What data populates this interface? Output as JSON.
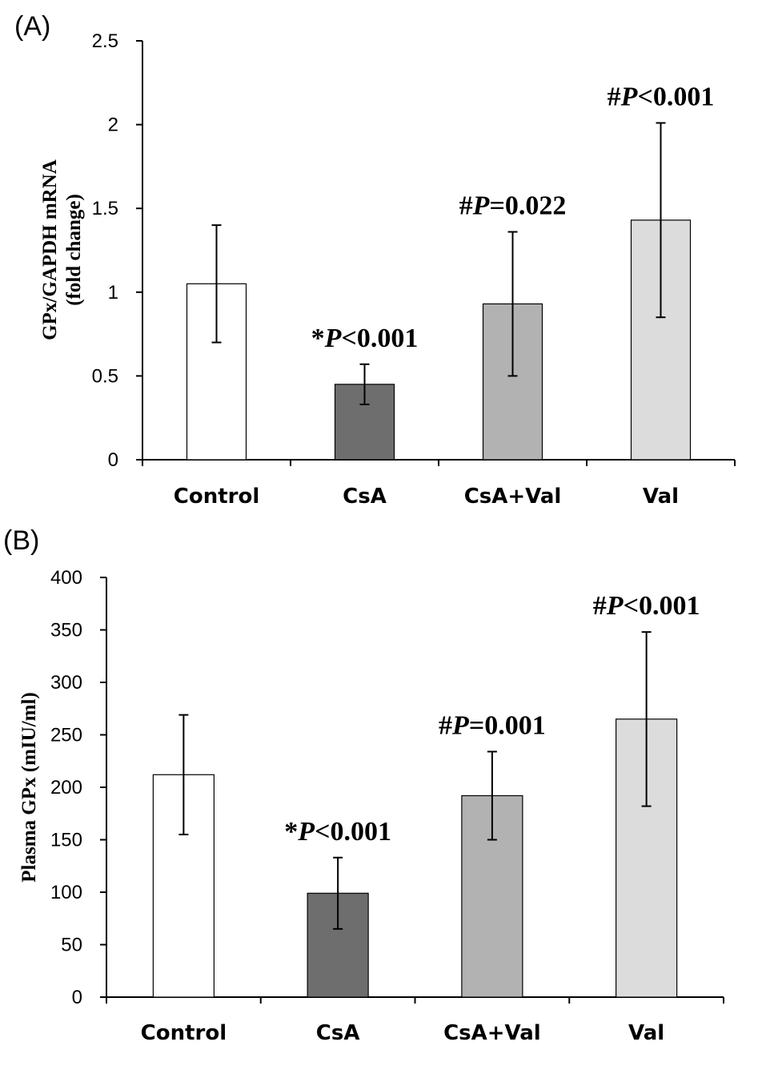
{
  "chart_data": [
    {
      "panel": "(A)",
      "type": "bar",
      "categories": [
        "Control",
        "CsA",
        "CsA+Val",
        "Val"
      ],
      "values": [
        1.05,
        0.45,
        0.93,
        1.43
      ],
      "errors": [
        0.35,
        0.12,
        0.43,
        0.58
      ],
      "colors": [
        "#ffffff",
        "#6e6e6e",
        "#b2b2b2",
        "#dcdcdc"
      ],
      "ylim": [
        0,
        2.5
      ],
      "yticks": [
        0,
        0.5,
        1,
        1.5,
        2,
        2.5
      ],
      "ytick_labels": [
        "0",
        "0.5",
        "1",
        "1.5",
        "2",
        "2.5"
      ],
      "ylabel_lines": [
        "GPx/GAPDH  mRNA",
        "(fold change)"
      ],
      "xlabel": "",
      "annotations": [
        {
          "category": "CsA",
          "prefix": "*",
          "p": "P",
          "rest": "<0.001"
        },
        {
          "category": "CsA+Val",
          "prefix": "#",
          "p": "P",
          "rest": "=0.022"
        },
        {
          "category": "Val",
          "prefix": "#",
          "p": "P",
          "rest": "<0.001"
        }
      ]
    },
    {
      "panel": "(B)",
      "type": "bar",
      "categories": [
        "Control",
        "CsA",
        "CsA+Val",
        "Val"
      ],
      "values": [
        212,
        99,
        192,
        265
      ],
      "errors": [
        57,
        34,
        42,
        83
      ],
      "colors": [
        "#ffffff",
        "#6e6e6e",
        "#b2b2b2",
        "#dcdcdc"
      ],
      "ylim": [
        0,
        400
      ],
      "yticks": [
        0,
        50,
        100,
        150,
        200,
        250,
        300,
        350,
        400
      ],
      "ytick_labels": [
        "0",
        "50",
        "100",
        "150",
        "200",
        "250",
        "300",
        "350",
        "400"
      ],
      "ylabel_lines": [
        "Plasma GPx (mIU/ml)"
      ],
      "xlabel": "",
      "annotations": [
        {
          "category": "CsA",
          "prefix": "*",
          "p": "P",
          "rest": "<0.001"
        },
        {
          "category": "CsA+Val",
          "prefix": "#",
          "p": "P",
          "rest": "=0.001"
        },
        {
          "category": "Val",
          "prefix": "#",
          "p": "P",
          "rest": "<0.001"
        }
      ]
    }
  ]
}
